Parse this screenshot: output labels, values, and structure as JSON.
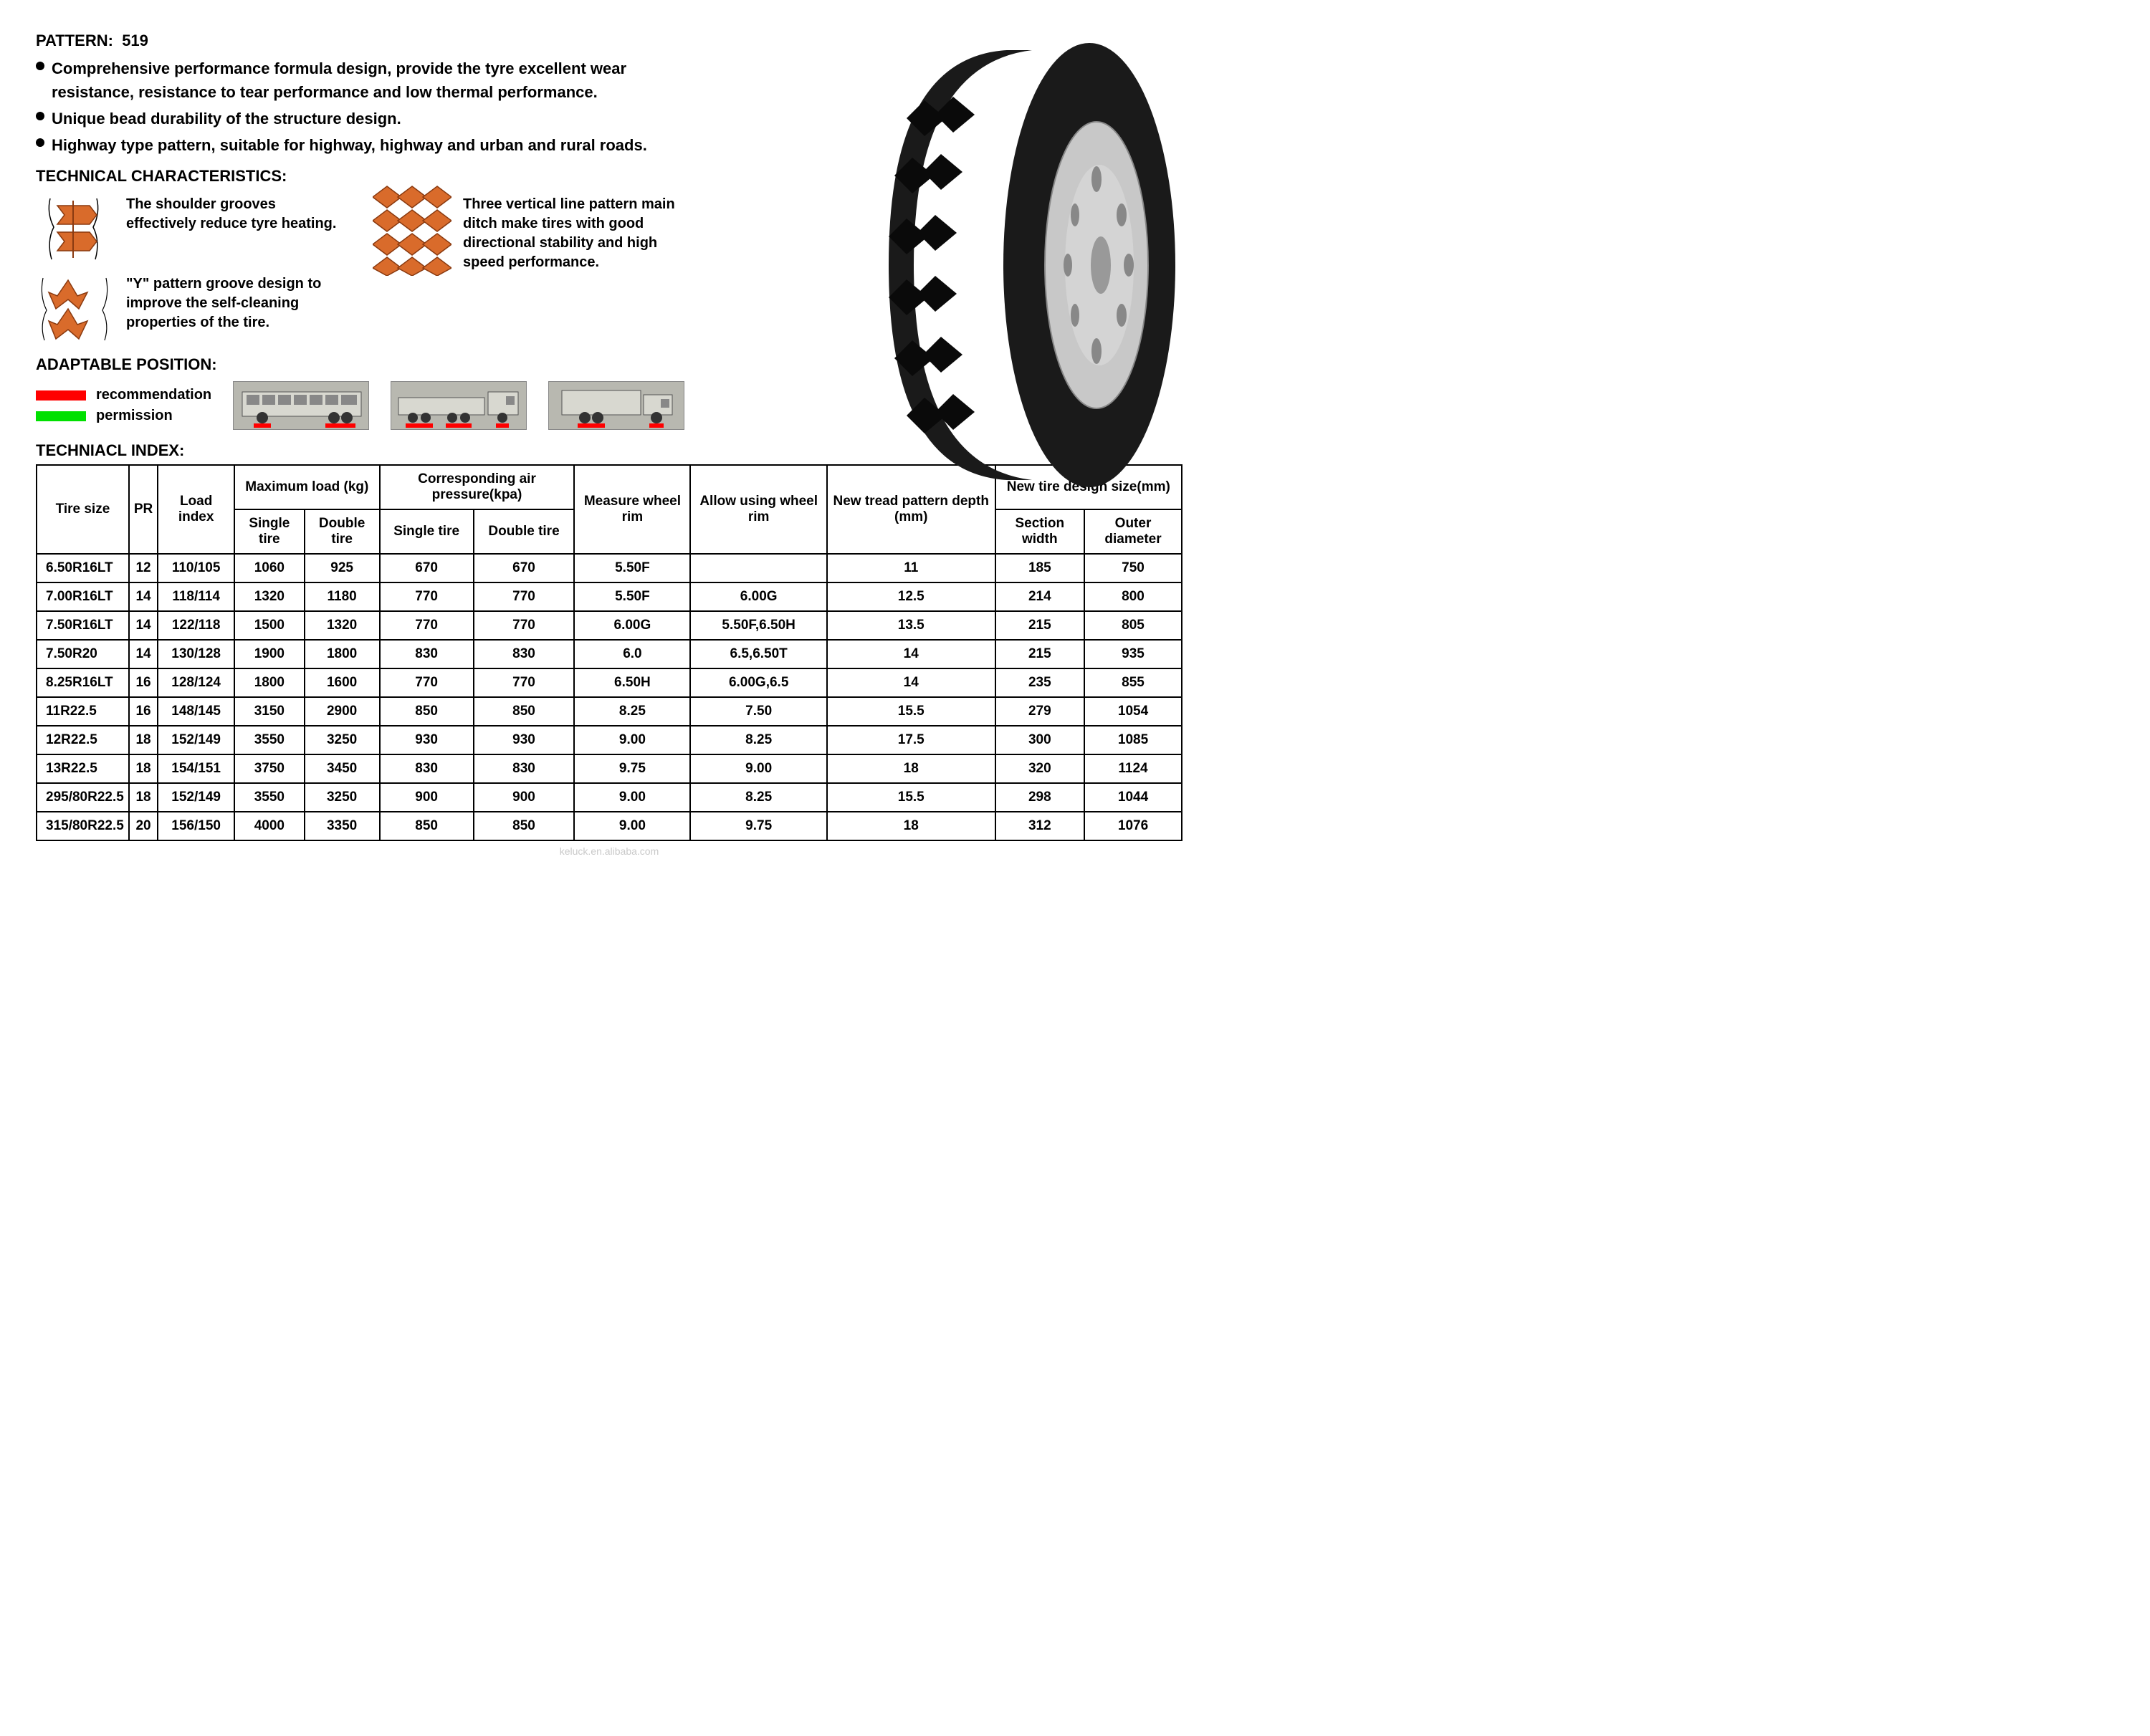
{
  "pattern": {
    "label": "PATTERN:",
    "value": "519"
  },
  "bullets": [
    "Comprehensive performance formula design, provide the tyre excellent wear resistance, resistance to tear performance and low thermal performance.",
    "Unique bead durability of the structure design.",
    "Highway type pattern, suitable for highway, highway and urban and rural roads."
  ],
  "headings": {
    "tech_chars": "TECHNICAL CHARACTERISTICS:",
    "adaptable": "ADAPTABLE POSITION:",
    "tech_index": "TECHNIACL INDEX:"
  },
  "tech_items": {
    "shoulder": "The shoulder grooves effectively reduce tyre heating.",
    "y_pattern": "\"Y\"  pattern groove design to improve the self-cleaning properties of the tire.",
    "vertical": "Three vertical line pattern main ditch make tires with good directional stability and high speed performance."
  },
  "legend": {
    "recommendation": {
      "label": "recommendation",
      "color": "#ff0000"
    },
    "permission": {
      "label": "permission",
      "color": "#00e000"
    }
  },
  "pattern_color": "#d96b2b",
  "tire_colors": {
    "tread": "#1a1a1a",
    "rim": "#c8c8c8",
    "rim_dark": "#888888"
  },
  "table": {
    "headers": {
      "tire_size": "Tire size",
      "pr": "PR",
      "load_index": "Load index",
      "max_load": "Maximum load (kg)",
      "air_pressure": "Corresponding air pressure(kpa)",
      "single": "Single tire",
      "double": "Double tire",
      "measure_rim": "Measure wheel rim",
      "allow_rim": "Allow using wheel rim",
      "tread_depth": "New tread pattern depth (mm)",
      "design_size": "New tire design size(mm)",
      "section_width": "Section width",
      "outer_diameter": "Outer diameter"
    },
    "rows": [
      {
        "size": "6.50R16LT",
        "pr": "12",
        "li": "110/105",
        "ml_s": "1060",
        "ml_d": "925",
        "ap_s": "670",
        "ap_d": "670",
        "mr": "5.50F",
        "ar": "",
        "td": "11",
        "sw": "185",
        "od": "750"
      },
      {
        "size": "7.00R16LT",
        "pr": "14",
        "li": "118/114",
        "ml_s": "1320",
        "ml_d": "1180",
        "ap_s": "770",
        "ap_d": "770",
        "mr": "5.50F",
        "ar": "6.00G",
        "td": "12.5",
        "sw": "214",
        "od": "800"
      },
      {
        "size": "7.50R16LT",
        "pr": "14",
        "li": "122/118",
        "ml_s": "1500",
        "ml_d": "1320",
        "ap_s": "770",
        "ap_d": "770",
        "mr": "6.00G",
        "ar": "5.50F,6.50H",
        "td": "13.5",
        "sw": "215",
        "od": "805"
      },
      {
        "size": "7.50R20",
        "pr": "14",
        "li": "130/128",
        "ml_s": "1900",
        "ml_d": "1800",
        "ap_s": "830",
        "ap_d": "830",
        "mr": "6.0",
        "ar": "6.5,6.50T",
        "td": "14",
        "sw": "215",
        "od": "935"
      },
      {
        "size": "8.25R16LT",
        "pr": "16",
        "li": "128/124",
        "ml_s": "1800",
        "ml_d": "1600",
        "ap_s": "770",
        "ap_d": "770",
        "mr": "6.50H",
        "ar": "6.00G,6.5",
        "td": "14",
        "sw": "235",
        "od": "855"
      },
      {
        "size": "11R22.5",
        "pr": "16",
        "li": "148/145",
        "ml_s": "3150",
        "ml_d": "2900",
        "ap_s": "850",
        "ap_d": "850",
        "mr": "8.25",
        "ar": "7.50",
        "td": "15.5",
        "sw": "279",
        "od": "1054"
      },
      {
        "size": "12R22.5",
        "pr": "18",
        "li": "152/149",
        "ml_s": "3550",
        "ml_d": "3250",
        "ap_s": "930",
        "ap_d": "930",
        "mr": "9.00",
        "ar": "8.25",
        "td": "17.5",
        "sw": "300",
        "od": "1085"
      },
      {
        "size": "13R22.5",
        "pr": "18",
        "li": "154/151",
        "ml_s": "3750",
        "ml_d": "3450",
        "ap_s": "830",
        "ap_d": "830",
        "mr": "9.75",
        "ar": "9.00",
        "td": "18",
        "sw": "320",
        "od": "1124"
      },
      {
        "size": "295/80R22.5",
        "pr": "18",
        "li": "152/149",
        "ml_s": "3550",
        "ml_d": "3250",
        "ap_s": "900",
        "ap_d": "900",
        "mr": "9.00",
        "ar": "8.25",
        "td": "15.5",
        "sw": "298",
        "od": "1044"
      },
      {
        "size": "315/80R22.5",
        "pr": "20",
        "li": "156/150",
        "ml_s": "4000",
        "ml_d": "3350",
        "ap_s": "850",
        "ap_d": "850",
        "mr": "9.00",
        "ar": "9.75",
        "td": "18",
        "sw": "312",
        "od": "1076"
      }
    ]
  },
  "watermark": "keluck.en.alibaba.com"
}
